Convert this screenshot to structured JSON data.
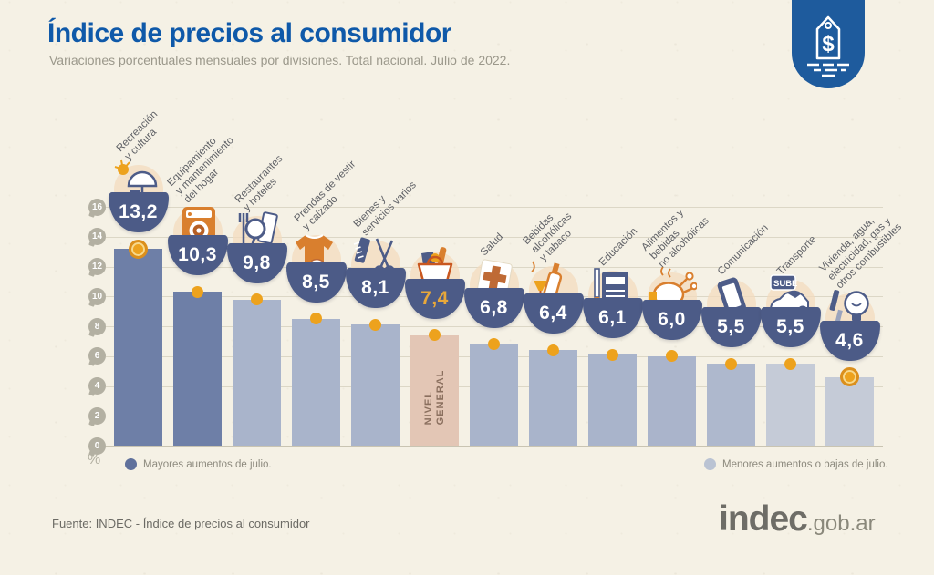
{
  "colors": {
    "background": "#f5f1e5",
    "title": "#0f59a9",
    "subtitle": "#9b988b",
    "badge": "#1e5b9d",
    "bowl": "#4c5b87",
    "grid": "#dcd7c6",
    "baseline": "#c9c4b2",
    "tick_pin": "#b3b0a2",
    "label_text": "#5f6166",
    "dot": "#eda21d",
    "coin_ring": "#db8f1c",
    "legend_text": "#8d8a7e",
    "footer_text": "#6b6a64",
    "logo_text": "#6e6d67",
    "bar_dark": "#6e7fa7",
    "bar_light": "#a9b4cb",
    "bar_lighter": "#c5cbd7",
    "bar_general": "#e3c6b5",
    "general_value": "#e8a83a",
    "general_label": "#8a6f5e",
    "accent_orange": "#d97f2e",
    "accent_navy": "#4d5c88"
  },
  "header": {
    "title": "Índice de precios al consumidor",
    "subtitle": "Variaciones porcentuales mensuales por divisiones. Total nacional. Julio de 2022.",
    "badge_icon": "price-tag-icon"
  },
  "chart_data": {
    "type": "bar",
    "title": "Índice de precios al consumidor",
    "subtitle": "Variaciones porcentuales mensuales por divisiones. Total nacional. Julio de 2022.",
    "ylabel": "%",
    "ylim": [
      0,
      16
    ],
    "yticks": [
      0,
      2,
      4,
      6,
      8,
      10,
      12,
      14,
      16
    ],
    "grid": true,
    "legend_position": "bottom",
    "categories": [
      "Recreación y cultura",
      "Equipamiento y mantenimiento del hogar",
      "Restaurantes y hoteles",
      "Prendas de vestir y calzado",
      "Bienes y servicios varios",
      "Nivel general",
      "Salud",
      "Bebidas alcohólicas y tabaco",
      "Educación",
      "Alimentos y bebidas no alcohólicas",
      "Comunicación",
      "Transporte",
      "Vivienda, agua, electricidad, gas y otros combustibles"
    ],
    "values": [
      13.2,
      10.3,
      9.8,
      8.5,
      8.1,
      7.4,
      6.8,
      6.4,
      6.1,
      6.0,
      5.5,
      5.5,
      4.6
    ],
    "bars": [
      {
        "id": "recreacion-cultura",
        "label": "Recreación\ny cultura",
        "value": 13.2,
        "display": "13,2",
        "color": "#6e7fa7",
        "icon": "sun-umbrella",
        "marker": "coin"
      },
      {
        "id": "equipamiento-hogar",
        "label": "Equipamiento\ny mantenimiento\ndel hogar",
        "value": 10.3,
        "display": "10,3",
        "color": "#6e7fa7",
        "icon": "washing-machine",
        "marker": "dot"
      },
      {
        "id": "restaurantes-hoteles",
        "label": "Restaurantes\ny hoteles",
        "value": 9.8,
        "display": "9,8",
        "color": "#a9b4cb",
        "icon": "cutlery",
        "marker": "dot"
      },
      {
        "id": "prendas-calzado",
        "label": "Prendas de vestir\ny calzado",
        "value": 8.5,
        "display": "8,5",
        "color": "#a9b4cb",
        "icon": "tshirt",
        "marker": "dot"
      },
      {
        "id": "bienes-servicios",
        "label": "Bienes y\nservicios varios",
        "value": 8.1,
        "display": "8,1",
        "color": "#a9b4cb",
        "icon": "scissors-comb",
        "marker": "dot"
      },
      {
        "id": "nivel-general",
        "label": "",
        "bar_label": "NIVEL\nGENERAL",
        "value": 7.4,
        "display": "7,4",
        "color": "#e3c6b5",
        "value_color": "#e8a83a",
        "icon": "shopping-basket",
        "marker": "dot"
      },
      {
        "id": "salud",
        "label": "Salud",
        "value": 6.8,
        "display": "6,8",
        "color": "#a9b4cb",
        "icon": "health-cross",
        "marker": "dot"
      },
      {
        "id": "bebidas-alcoholicas-tabaco",
        "label": "Bebidas\nalcohólicas\ny tabaco",
        "value": 6.4,
        "display": "6,4",
        "color": "#a9b4cb",
        "icon": "bottle-glass",
        "marker": "dot"
      },
      {
        "id": "educacion",
        "label": "Educación",
        "value": 6.1,
        "display": "6,1",
        "color": "#a9b4cb",
        "icon": "notebook-pencil",
        "marker": "dot"
      },
      {
        "id": "alimentos-bebidas",
        "label": "Alimentos y\nbebidas\nno alcohólicas",
        "value": 6.0,
        "display": "6,0",
        "color": "#aab4cb",
        "icon": "roast-chicken",
        "marker": "dot"
      },
      {
        "id": "comunicacion",
        "label": "Comunicación",
        "value": 5.5,
        "display": "5,5",
        "color": "#aeb8cd",
        "icon": "smartphone",
        "marker": "dot"
      },
      {
        "id": "transporte",
        "label": "Transporte",
        "value": 5.5,
        "display": "5,5",
        "color": "#c5cbd7",
        "icon": "car-sube",
        "marker": "dot"
      },
      {
        "id": "vivienda-servicios",
        "label": "Vivienda, agua,\nelectricidad, gas y\notros combustibles",
        "value": 4.6,
        "display": "4,6",
        "color": "#c5cbd7",
        "icon": "lightbulb",
        "marker": "coin"
      }
    ]
  },
  "legend": {
    "items": [
      {
        "label": "Mayores aumentos de julio.",
        "color": "#60719c"
      },
      {
        "label": "Menores aumentos o bajas de julio.",
        "color": "#bac3d3"
      }
    ]
  },
  "footer": {
    "source": "Fuente: INDEC - Índice de precios al consumidor",
    "logo_main": "indec",
    "logo_suffix": ".gob.ar"
  }
}
